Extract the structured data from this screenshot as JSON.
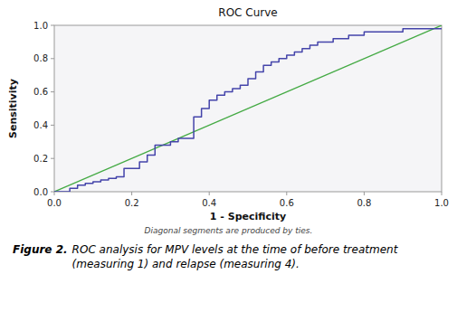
{
  "chart_data": {
    "type": "line",
    "title": "ROC Curve",
    "x_label": "1 - Specificity",
    "y_label": "Sensitivity",
    "footnote": "Diagonal segments are produced by ties.",
    "caption_bold": "Figure 2.",
    "caption_italic": "ROC analysis for MPV levels at the time of before treatment\n(measuring 1) and relapse (measuring 4).",
    "xlim": [
      0.0,
      1.0
    ],
    "ylim": [
      0.0,
      1.0
    ],
    "xticks": [
      {
        "value": 0,
        "label": "0.0"
      },
      0.2,
      0.4,
      0.6,
      0.8,
      {
        "value": 1,
        "label": "1.0"
      }
    ],
    "yticks": [
      {
        "value": 0,
        "label": "0.0"
      },
      0.2,
      0.4,
      0.6,
      0.8,
      {
        "value": 1,
        "label": "1.0"
      }
    ],
    "grid": false,
    "series": [
      {
        "color": "#44aa44",
        "x": [
          0,
          1
        ],
        "values": [
          0,
          1
        ]
      },
      {
        "color": "#4444aa",
        "x": [
          0.0,
          0.04,
          0.04,
          0.06,
          0.06,
          0.08,
          0.08,
          0.1,
          0.1,
          0.12,
          0.12,
          0.14,
          0.14,
          0.16,
          0.16,
          0.18,
          0.18,
          0.22,
          0.22,
          0.24,
          0.24,
          0.26,
          0.26,
          0.3,
          0.3,
          0.32,
          0.32,
          0.36,
          0.36,
          0.38,
          0.38,
          0.4,
          0.4,
          0.42,
          0.42,
          0.44,
          0.44,
          0.46,
          0.46,
          0.48,
          0.48,
          0.5,
          0.5,
          0.52,
          0.52,
          0.54,
          0.54,
          0.56,
          0.56,
          0.58,
          0.58,
          0.6,
          0.6,
          0.62,
          0.62,
          0.64,
          0.64,
          0.66,
          0.66,
          0.68,
          0.68,
          0.72,
          0.72,
          0.76,
          0.76,
          0.8,
          0.8,
          0.9,
          0.9,
          1.0
        ],
        "values": [
          0.0,
          0.0,
          0.02,
          0.02,
          0.04,
          0.04,
          0.05,
          0.05,
          0.06,
          0.06,
          0.07,
          0.07,
          0.08,
          0.08,
          0.09,
          0.09,
          0.14,
          0.14,
          0.18,
          0.18,
          0.22,
          0.22,
          0.28,
          0.28,
          0.3,
          0.3,
          0.32,
          0.32,
          0.45,
          0.45,
          0.5,
          0.5,
          0.55,
          0.55,
          0.58,
          0.58,
          0.6,
          0.6,
          0.62,
          0.62,
          0.64,
          0.64,
          0.68,
          0.68,
          0.72,
          0.72,
          0.76,
          0.76,
          0.78,
          0.78,
          0.8,
          0.8,
          0.82,
          0.82,
          0.84,
          0.84,
          0.86,
          0.86,
          0.88,
          0.88,
          0.9,
          0.9,
          0.92,
          0.92,
          0.94,
          0.94,
          0.96,
          0.96,
          0.98,
          0.98
        ]
      }
    ]
  }
}
